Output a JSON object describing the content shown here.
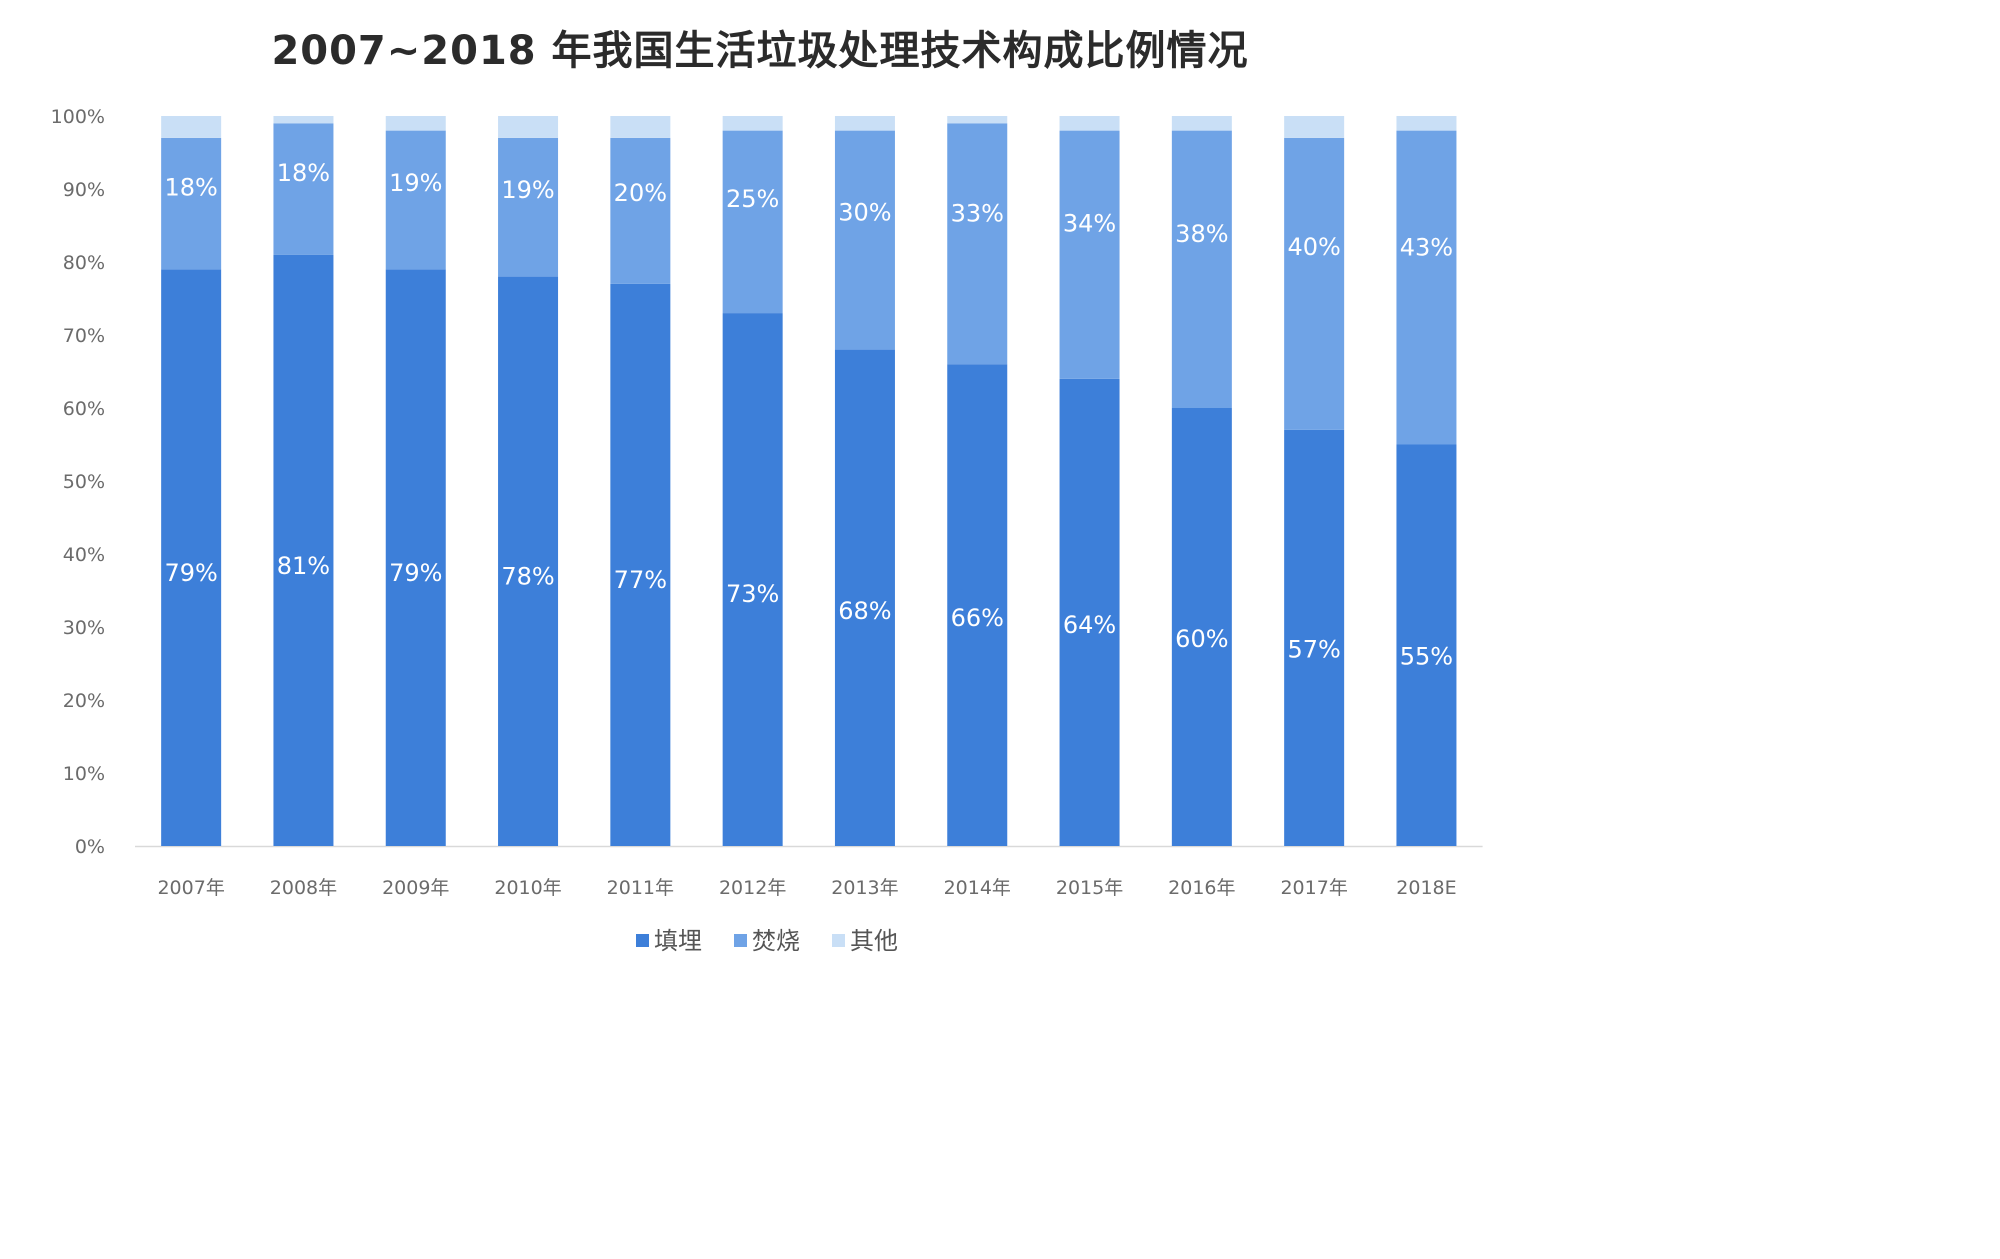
{
  "chart_data": {
    "type": "bar",
    "stacked": true,
    "title": "2007~2018 年我国生活垃圾处理技术构成比例情况",
    "categories": [
      "2007年",
      "2008年",
      "2009年",
      "2010年",
      "2011年",
      "2012年",
      "2013年",
      "2014年",
      "2015年",
      "2016年",
      "2017年",
      "2018E"
    ],
    "series": [
      {
        "name": "填埋",
        "color": "#3d7fd9",
        "values": [
          79,
          81,
          79,
          78,
          77,
          73,
          68,
          66,
          64,
          60,
          57,
          55
        ],
        "labels": [
          "79%",
          "81%",
          "79%",
          "78%",
          "77%",
          "73%",
          "68%",
          "66%",
          "64%",
          "60%",
          "57%",
          "55%"
        ]
      },
      {
        "name": "焚烧",
        "color": "#6fa3e6",
        "values": [
          18,
          18,
          19,
          19,
          20,
          25,
          30,
          33,
          34,
          38,
          40,
          43
        ],
        "labels": [
          "18%",
          "18%",
          "19%",
          "19%",
          "20%",
          "25%",
          "30%",
          "33%",
          "34%",
          "38%",
          "40%",
          "43%"
        ]
      },
      {
        "name": "其他",
        "color": "#c9dff6",
        "values": [
          3,
          1,
          2,
          3,
          3,
          2,
          2,
          1,
          2,
          2,
          3,
          2
        ]
      }
    ],
    "yticks": [
      "0%",
      "10%",
      "20%",
      "30%",
      "40%",
      "50%",
      "60%",
      "70%",
      "80%",
      "90%",
      "100%"
    ],
    "ylim": [
      0,
      100
    ],
    "legend_position": "bottom"
  }
}
